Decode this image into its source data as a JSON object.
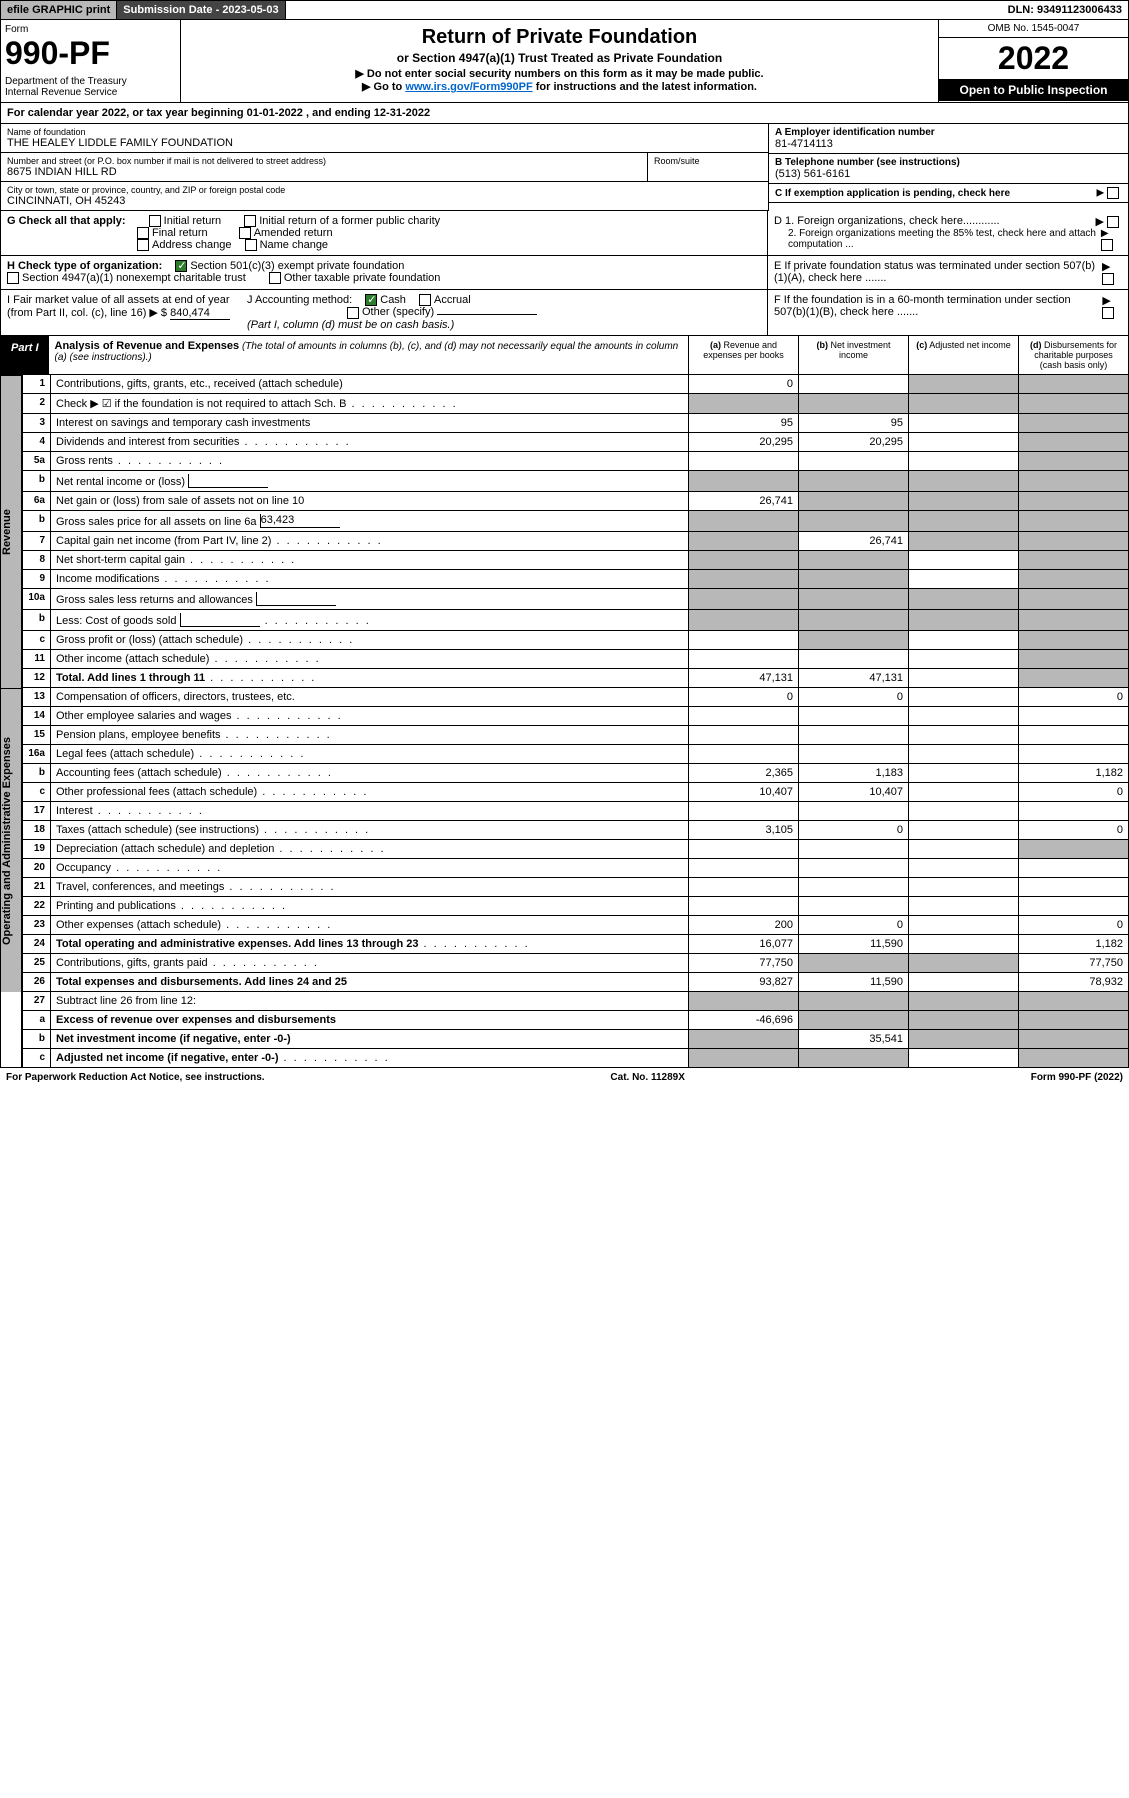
{
  "topbar": {
    "efile": "efile GRAPHIC print",
    "submission": "Submission Date - 2023-05-03",
    "dln": "DLN: 93491123006433"
  },
  "header": {
    "form_label": "Form",
    "form_num": "990-PF",
    "dept": "Department of the Treasury\nInternal Revenue Service",
    "title": "Return of Private Foundation",
    "sub1": "or Section 4947(a)(1) Trust Treated as Private Foundation",
    "sub2a": "▶ Do not enter social security numbers on this form as it may be made public.",
    "sub2b": "▶ Go to ",
    "sub2_link": "www.irs.gov/Form990PF",
    "sub2c": " for instructions and the latest information.",
    "omb": "OMB No. 1545-0047",
    "year": "2022",
    "open": "Open to Public Inspection"
  },
  "calendar": "For calendar year 2022, or tax year beginning 01-01-2022                             , and ending 12-31-2022",
  "info": {
    "name_label": "Name of foundation",
    "name": "THE HEALEY LIDDLE FAMILY FOUNDATION",
    "ein_label": "A Employer identification number",
    "ein": "81-4714113",
    "addr_label": "Number and street (or P.O. box number if mail is not delivered to street address)",
    "addr": "8675 INDIAN HILL RD",
    "room_label": "Room/suite",
    "phone_label": "B Telephone number (see instructions)",
    "phone": "(513) 561-6161",
    "city_label": "City or town, state or province, country, and ZIP or foreign postal code",
    "city": "CINCINNATI, OH  45243",
    "c_label": "C If exemption application is pending, check here"
  },
  "g": {
    "label": "G Check all that apply:",
    "opts": [
      "Initial return",
      "Final return",
      "Address change",
      "Initial return of a former public charity",
      "Amended return",
      "Name change"
    ]
  },
  "d": {
    "d1": "D 1. Foreign organizations, check here............",
    "d2": "2. Foreign organizations meeting the 85% test, check here and attach computation ..."
  },
  "h": {
    "label": "H Check type of organization:",
    "opt1": "Section 501(c)(3) exempt private foundation",
    "opt2": "Section 4947(a)(1) nonexempt charitable trust",
    "opt3": "Other taxable private foundation"
  },
  "e": "E  If private foundation status was terminated under section 507(b)(1)(A), check here .......",
  "i": {
    "label": "I Fair market value of all assets at end of year (from Part II, col. (c), line 16) ▶ $",
    "val": "840,474"
  },
  "j": {
    "label": "J Accounting method:",
    "cash": "Cash",
    "accrual": "Accrual",
    "other": "Other (specify)",
    "note": "(Part I, column (d) must be on cash basis.)"
  },
  "f": "F  If the foundation is in a 60-month termination under section 507(b)(1)(B), check here .......",
  "part1": {
    "label": "Part I",
    "title": "Analysis of Revenue and Expenses",
    "note": "(The total of amounts in columns (b), (c), and (d) may not necessarily equal the amounts in column (a) (see instructions).)",
    "col_a": "(a) Revenue and expenses per books",
    "col_b": "(b) Net investment income",
    "col_c": "(c) Adjusted net income",
    "col_d": "(d) Disbursements for charitable purposes (cash basis only)"
  },
  "side_revenue": "Revenue",
  "side_expenses": "Operating and Administrative Expenses",
  "rows": [
    {
      "n": "1",
      "d": "Contributions, gifts, grants, etc., received (attach schedule)",
      "a": "0",
      "b": "",
      "c": "g",
      "dd": "g"
    },
    {
      "n": "2",
      "d": "Check ▶ ☑ if the foundation is not required to attach Sch. B",
      "dots": true,
      "a": "g",
      "b": "g",
      "c": "g",
      "dd": "g"
    },
    {
      "n": "3",
      "d": "Interest on savings and temporary cash investments",
      "a": "95",
      "b": "95",
      "c": "",
      "dd": "g"
    },
    {
      "n": "4",
      "d": "Dividends and interest from securities",
      "dots": true,
      "a": "20,295",
      "b": "20,295",
      "c": "",
      "dd": "g"
    },
    {
      "n": "5a",
      "d": "Gross rents",
      "dots": true,
      "a": "",
      "b": "",
      "c": "",
      "dd": "g"
    },
    {
      "n": "b",
      "d": "Net rental income or (loss)",
      "inline": true,
      "a": "g",
      "b": "g",
      "c": "g",
      "dd": "g"
    },
    {
      "n": "6a",
      "d": "Net gain or (loss) from sale of assets not on line 10",
      "a": "26,741",
      "b": "g",
      "c": "g",
      "dd": "g"
    },
    {
      "n": "b",
      "d": "Gross sales price for all assets on line 6a",
      "inline": true,
      "inline_val": "63,423",
      "a": "g",
      "b": "g",
      "c": "g",
      "dd": "g"
    },
    {
      "n": "7",
      "d": "Capital gain net income (from Part IV, line 2)",
      "dots": true,
      "a": "g",
      "b": "26,741",
      "c": "g",
      "dd": "g"
    },
    {
      "n": "8",
      "d": "Net short-term capital gain",
      "dots": true,
      "a": "g",
      "b": "g",
      "c": "",
      "dd": "g"
    },
    {
      "n": "9",
      "d": "Income modifications",
      "dots": true,
      "a": "g",
      "b": "g",
      "c": "",
      "dd": "g"
    },
    {
      "n": "10a",
      "d": "Gross sales less returns and allowances",
      "inline": true,
      "a": "g",
      "b": "g",
      "c": "g",
      "dd": "g"
    },
    {
      "n": "b",
      "d": "Less: Cost of goods sold",
      "dots": true,
      "inline": true,
      "a": "g",
      "b": "g",
      "c": "g",
      "dd": "g"
    },
    {
      "n": "c",
      "d": "Gross profit or (loss) (attach schedule)",
      "dots": true,
      "a": "",
      "b": "g",
      "c": "",
      "dd": "g"
    },
    {
      "n": "11",
      "d": "Other income (attach schedule)",
      "dots": true,
      "a": "",
      "b": "",
      "c": "",
      "dd": "g"
    },
    {
      "n": "12",
      "d": "Total. Add lines 1 through 11",
      "dots": true,
      "bold": true,
      "a": "47,131",
      "b": "47,131",
      "c": "",
      "dd": "g"
    }
  ],
  "exp_rows": [
    {
      "n": "13",
      "d": "Compensation of officers, directors, trustees, etc.",
      "a": "0",
      "b": "0",
      "c": "",
      "dd": "0"
    },
    {
      "n": "14",
      "d": "Other employee salaries and wages",
      "dots": true,
      "a": "",
      "b": "",
      "c": "",
      "dd": ""
    },
    {
      "n": "15",
      "d": "Pension plans, employee benefits",
      "dots": true,
      "a": "",
      "b": "",
      "c": "",
      "dd": ""
    },
    {
      "n": "16a",
      "d": "Legal fees (attach schedule)",
      "dots": true,
      "a": "",
      "b": "",
      "c": "",
      "dd": ""
    },
    {
      "n": "b",
      "d": "Accounting fees (attach schedule)",
      "dots": true,
      "a": "2,365",
      "b": "1,183",
      "c": "",
      "dd": "1,182"
    },
    {
      "n": "c",
      "d": "Other professional fees (attach schedule)",
      "dots": true,
      "a": "10,407",
      "b": "10,407",
      "c": "",
      "dd": "0"
    },
    {
      "n": "17",
      "d": "Interest",
      "dots": true,
      "a": "",
      "b": "",
      "c": "",
      "dd": ""
    },
    {
      "n": "18",
      "d": "Taxes (attach schedule) (see instructions)",
      "dots": true,
      "a": "3,105",
      "b": "0",
      "c": "",
      "dd": "0"
    },
    {
      "n": "19",
      "d": "Depreciation (attach schedule) and depletion",
      "dots": true,
      "a": "",
      "b": "",
      "c": "",
      "dd": "g"
    },
    {
      "n": "20",
      "d": "Occupancy",
      "dots": true,
      "a": "",
      "b": "",
      "c": "",
      "dd": ""
    },
    {
      "n": "21",
      "d": "Travel, conferences, and meetings",
      "dots": true,
      "a": "",
      "b": "",
      "c": "",
      "dd": ""
    },
    {
      "n": "22",
      "d": "Printing and publications",
      "dots": true,
      "a": "",
      "b": "",
      "c": "",
      "dd": ""
    },
    {
      "n": "23",
      "d": "Other expenses (attach schedule)",
      "dots": true,
      "a": "200",
      "b": "0",
      "c": "",
      "dd": "0"
    },
    {
      "n": "24",
      "d": "Total operating and administrative expenses. Add lines 13 through 23",
      "dots": true,
      "bold": true,
      "a": "16,077",
      "b": "11,590",
      "c": "",
      "dd": "1,182"
    },
    {
      "n": "25",
      "d": "Contributions, gifts, grants paid",
      "dots": true,
      "a": "77,750",
      "b": "g",
      "c": "g",
      "dd": "77,750"
    },
    {
      "n": "26",
      "d": "Total expenses and disbursements. Add lines 24 and 25",
      "bold": true,
      "a": "93,827",
      "b": "11,590",
      "c": "",
      "dd": "78,932"
    }
  ],
  "bottom_rows": [
    {
      "n": "27",
      "d": "Subtract line 26 from line 12:",
      "a": "g",
      "b": "g",
      "c": "g",
      "dd": "g"
    },
    {
      "n": "a",
      "d": "Excess of revenue over expenses and disbursements",
      "bold": true,
      "a": "-46,696",
      "b": "g",
      "c": "g",
      "dd": "g"
    },
    {
      "n": "b",
      "d": "Net investment income (if negative, enter -0-)",
      "bold": true,
      "a": "g",
      "b": "35,541",
      "c": "g",
      "dd": "g"
    },
    {
      "n": "c",
      "d": "Adjusted net income (if negative, enter -0-)",
      "dots": true,
      "bold": true,
      "a": "g",
      "b": "g",
      "c": "",
      "dd": "g"
    }
  ],
  "footer": {
    "left": "For Paperwork Reduction Act Notice, see instructions.",
    "mid": "Cat. No. 11289X",
    "right": "Form 990-PF (2022)"
  }
}
